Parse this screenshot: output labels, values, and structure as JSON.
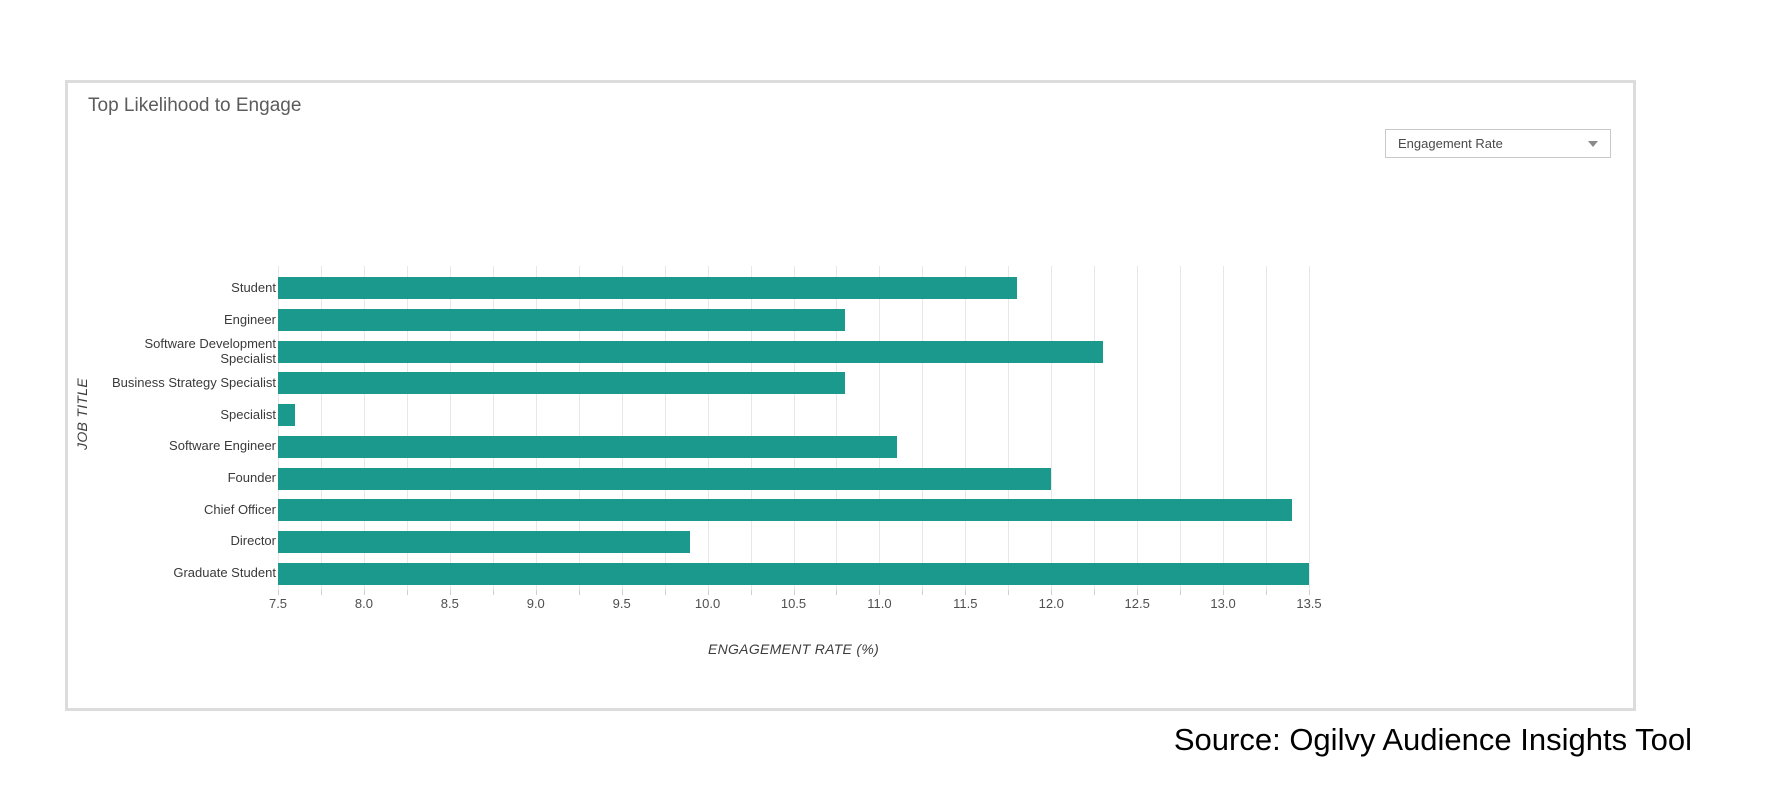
{
  "header": {
    "title": "Top Likelihood to Engage"
  },
  "controls": {
    "metric_dropdown": {
      "value": "Engagement Rate"
    }
  },
  "chart_data": {
    "type": "bar",
    "orientation": "horizontal",
    "title": "Top Likelihood to Engage",
    "categories": [
      "Student",
      "Engineer",
      "Software Development Specialist",
      "Business Strategy Specialist",
      "Specialist",
      "Software Engineer",
      "Founder",
      "Chief Officer",
      "Director",
      "Graduate Student"
    ],
    "values": [
      11.8,
      10.8,
      12.3,
      10.8,
      7.6,
      11.1,
      12.0,
      13.4,
      9.9,
      13.5
    ],
    "xlabel": "ENGAGEMENT RATE (%)",
    "ylabel": "JOB TITLE",
    "xlim": [
      7.5,
      13.5
    ],
    "x_tick_labels": [
      "7.5",
      "8.0",
      "8.5",
      "9.0",
      "9.5",
      "10.0",
      "10.5",
      "11.0",
      "11.5",
      "12.0",
      "12.5",
      "13.0",
      "13.5"
    ],
    "minor_grid_step": 0.25,
    "grid": true,
    "legend": "none",
    "bar_color": "#1a998c",
    "grid_color": "#e7e7e7"
  },
  "footer": {
    "source": "Source: Ogilvy Audience Insights Tool"
  }
}
